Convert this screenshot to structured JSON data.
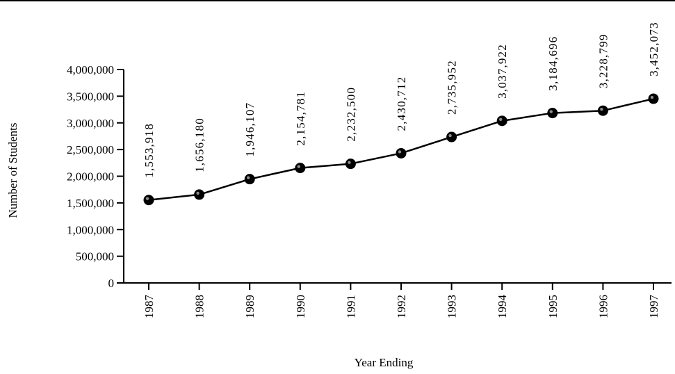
{
  "chart_data": {
    "type": "line",
    "title": "",
    "xlabel": "Year Ending",
    "ylabel": "Number of Students",
    "categories": [
      "1987",
      "1988",
      "1989",
      "1990",
      "1991",
      "1992",
      "1993",
      "1994",
      "1995",
      "1996",
      "1997"
    ],
    "values": [
      1553918,
      1656180,
      1946107,
      2154781,
      2232500,
      2430712,
      2735952,
      3037922,
      3184696,
      3228799,
      3452073
    ],
    "data_labels": [
      "1,553,918",
      "1,656,180",
      "1,946,107",
      "2,154,781",
      "2,232,500",
      "2,430,712",
      "2,735,952",
      "3,037,922",
      "3,184,696",
      "3,228,799",
      "3,452,073"
    ],
    "ylim": [
      0,
      4000000
    ],
    "y_ticks": [
      0,
      500000,
      1000000,
      1500000,
      2000000,
      2500000,
      3000000,
      3500000,
      4000000
    ],
    "y_tick_labels": [
      "0",
      "500,000",
      "1,000,000",
      "1,500,000",
      "2,000,000",
      "2,500,000",
      "3,000,000",
      "3,500,000",
      "4,000,000"
    ],
    "grid": false,
    "legend": "none",
    "colors": {
      "line": "#000000",
      "marker": "#000000"
    }
  }
}
